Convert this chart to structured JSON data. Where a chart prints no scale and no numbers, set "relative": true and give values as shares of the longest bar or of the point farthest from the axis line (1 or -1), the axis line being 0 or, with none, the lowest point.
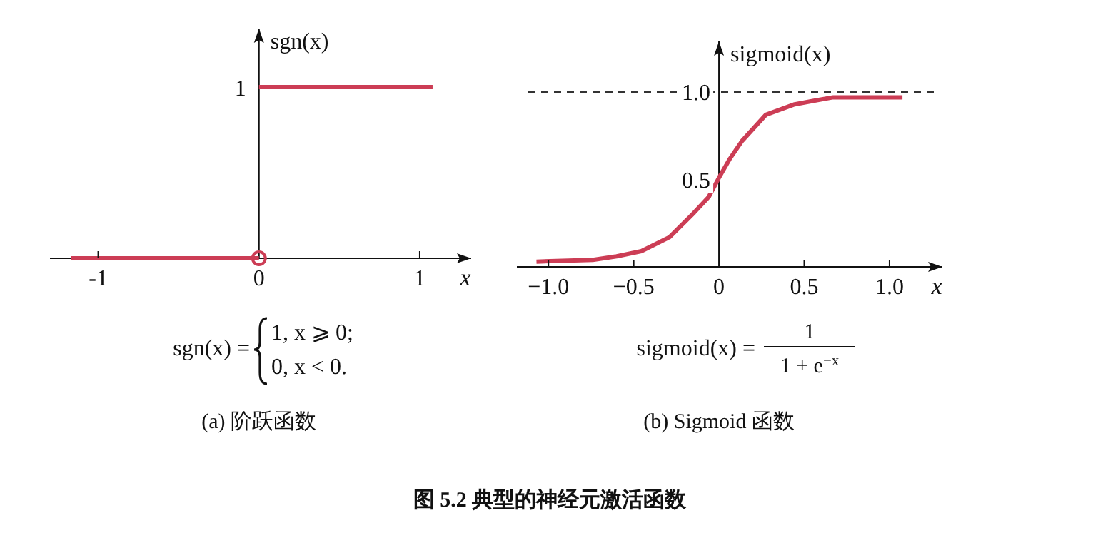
{
  "chart_data": [
    {
      "type": "line",
      "title": "(a) 阶跃函数",
      "xlabel": "x",
      "ylabel": "sgn(x)",
      "xlim": [
        -1.3,
        1.32
      ],
      "relative": true,
      "xticks": [
        {
          "value": -1,
          "label": "-1"
        },
        {
          "value": 0,
          "label": "0"
        },
        {
          "value": 1,
          "label": "1"
        }
      ],
      "line_style": "solid",
      "annotations": [
        "sgn(x) =",
        "1,   x ⩾ 0;",
        "0,   x < 0.",
        {
          "text": "1",
          "x": 0,
          "y": 1
        }
      ],
      "series": [
        {
          "type": "line",
          "x": [
            -1.17,
            0,
            null,
            0,
            1.08
          ],
          "values": [
            0,
            0,
            null,
            1,
            1
          ],
          "color": "#cc3d55"
        }
      ]
    },
    {
      "type": "line",
      "title": "(b) Sigmoid 函数",
      "xlabel": "x",
      "ylabel": "sigmoid(x)",
      "xlim": [
        -1.185,
        1.31
      ],
      "ylim": [
        0,
        1.29
      ],
      "xticks": [
        {
          "value": -1,
          "label": "−1.0"
        },
        {
          "value": -0.5,
          "label": "−0.5"
        },
        0,
        0.5,
        {
          "value": 1,
          "label": "1.0"
        }
      ],
      "yticks": [
        0.5,
        {
          "value": 1,
          "label": "1.0"
        }
      ],
      "line_style": "solid",
      "ref_lines": [
        {
          "axis": "y",
          "value": 1,
          "line_style": "dashed",
          "color": "#333333"
        }
      ],
      "annotations": [
        "sigmoid(x) =",
        "1",
        "1 + e$^{−x}$"
      ],
      "series": [
        {
          "type": "line",
          "color": "#cc3d55",
          "x": [
            -1.07,
            -0.74,
            -0.6,
            -0.455,
            -0.29,
            -0.146,
            -0.06,
            0,
            0.065,
            0.135,
            0.275,
            0.444,
            0.556,
            0.67,
            1.076
          ],
          "values": [
            0.03,
            0.04,
            0.06,
            0.09,
            0.17,
            0.31,
            0.4,
            0.51,
            0.62,
            0.72,
            0.87,
            0.93,
            0.95,
            0.97,
            0.97
          ]
        }
      ]
    },
    {
      "type": "other",
      "title": "图 5.2  典型的神经元激活函数"
    }
  ]
}
